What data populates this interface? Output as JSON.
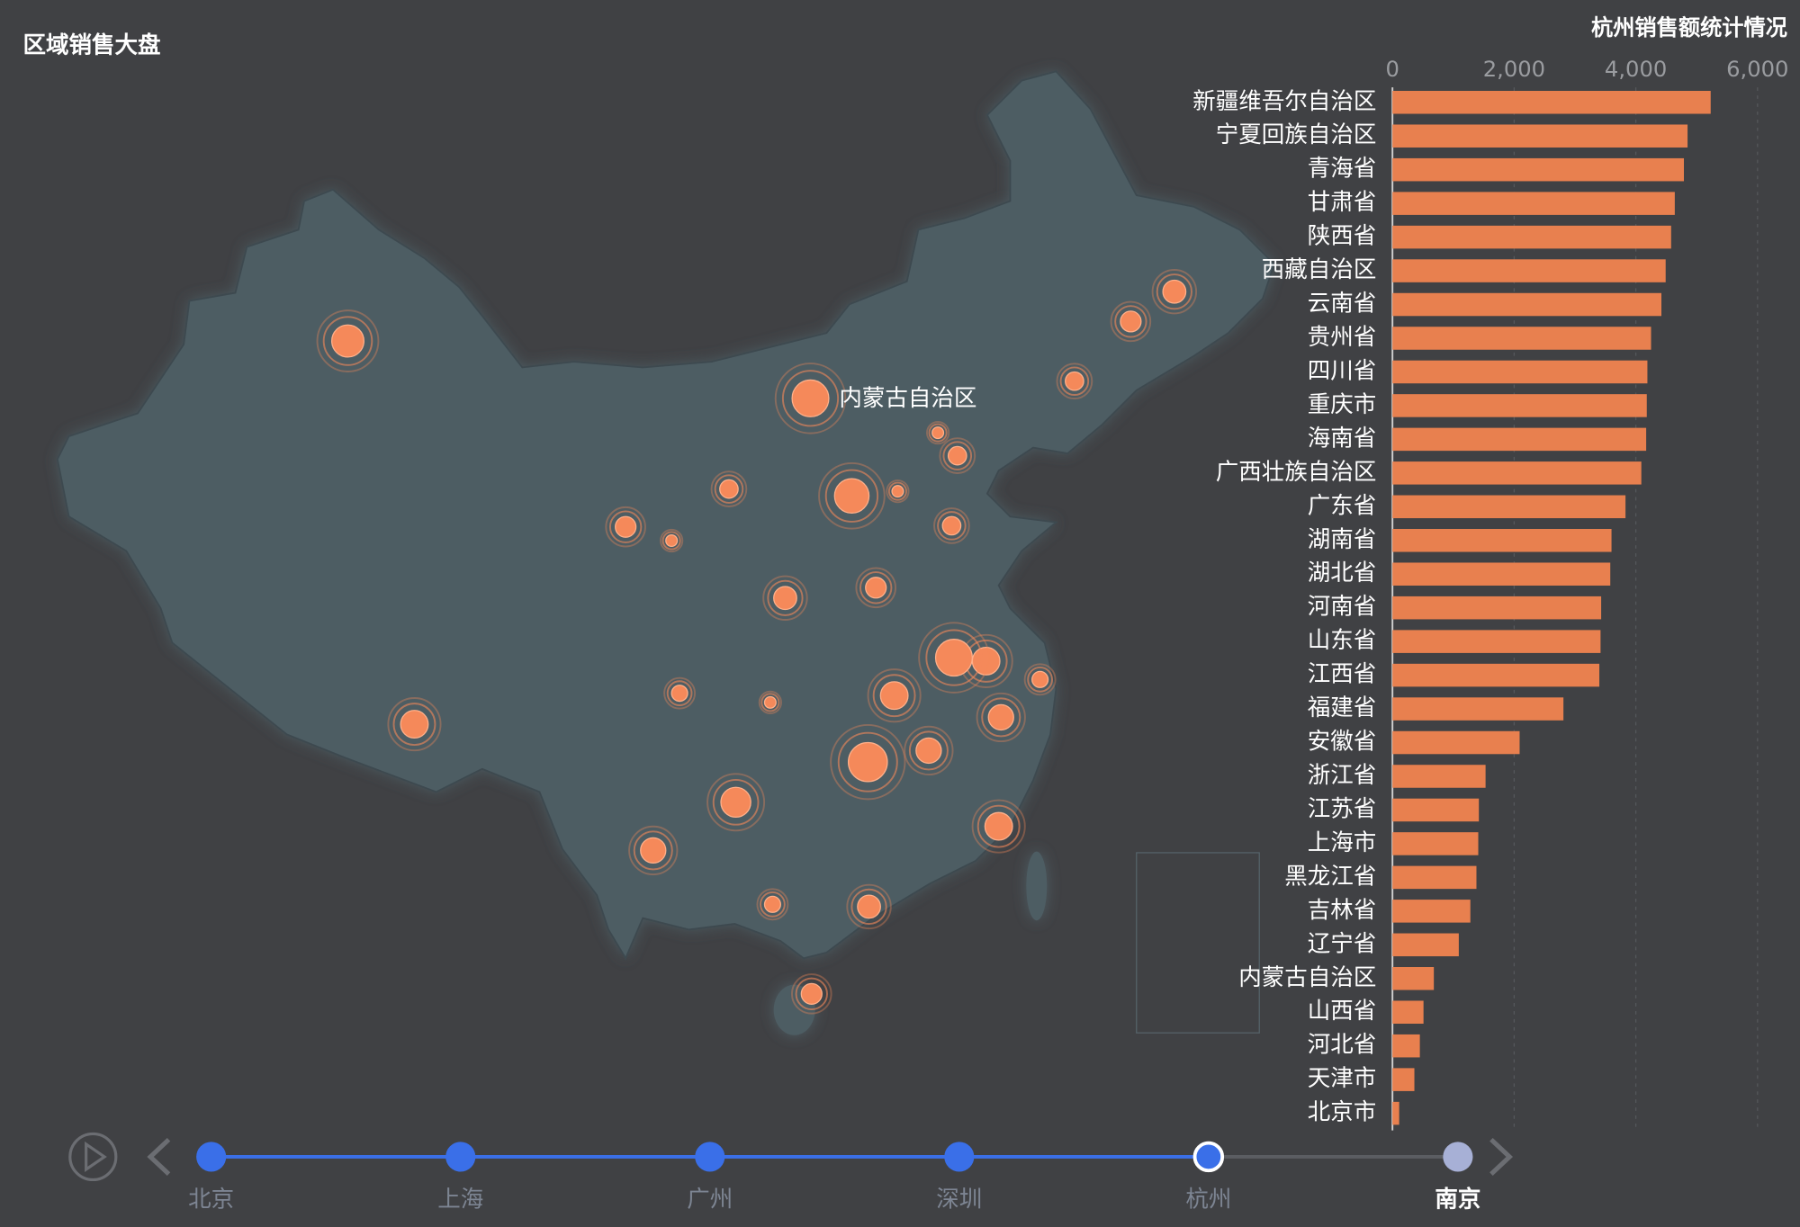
{
  "title": "区域销售大盘",
  "chart_data": {
    "type": "bar",
    "orientation": "horizontal",
    "title": "杭州销售额统计情况",
    "categories": [
      "新疆维吾尔自治区",
      "宁夏回族自治区",
      "青海省",
      "甘肃省",
      "陕西省",
      "西藏自治区",
      "云南省",
      "贵州省",
      "四川省",
      "重庆市",
      "海南省",
      "广西壮族自治区",
      "广东省",
      "湖南省",
      "湖北省",
      "河南省",
      "山东省",
      "江西省",
      "福建省",
      "安徽省",
      "浙江省",
      "江苏省",
      "上海市",
      "黑龙江省",
      "吉林省",
      "辽宁省",
      "内蒙古自治区",
      "山西省",
      "河北省",
      "天津市",
      "北京市"
    ],
    "values": [
      5230,
      4850,
      4790,
      4640,
      4580,
      4490,
      4420,
      4250,
      4190,
      4180,
      4170,
      4090,
      3830,
      3600,
      3580,
      3430,
      3420,
      3400,
      2810,
      2090,
      1530,
      1420,
      1410,
      1380,
      1280,
      1090,
      680,
      510,
      450,
      360,
      110
    ],
    "color": "#e8804f",
    "xlim": [
      0,
      6000
    ],
    "xticks": [
      0,
      {
        "value": 2000,
        "label": "2,000"
      },
      {
        "value": 4000,
        "label": "4,000"
      },
      {
        "value": 6000,
        "label": "6,000"
      }
    ],
    "grid": true
  },
  "map": {
    "values": [
      14,
      8,
      9,
      5,
      10,
      12,
      11,
      13,
      7,
      5,
      9,
      7,
      10,
      17,
      12,
      9,
      8,
      11,
      12,
      12,
      11,
      16,
      7,
      10,
      9,
      8,
      16,
      15,
      5,
      8,
      5
    ],
    "color": "#f5895a",
    "label_index": 26
  },
  "timeline": {
    "items": [
      "北京",
      "上海",
      "广州",
      "深圳",
      "杭州",
      "南京"
    ],
    "current": 4
  }
}
